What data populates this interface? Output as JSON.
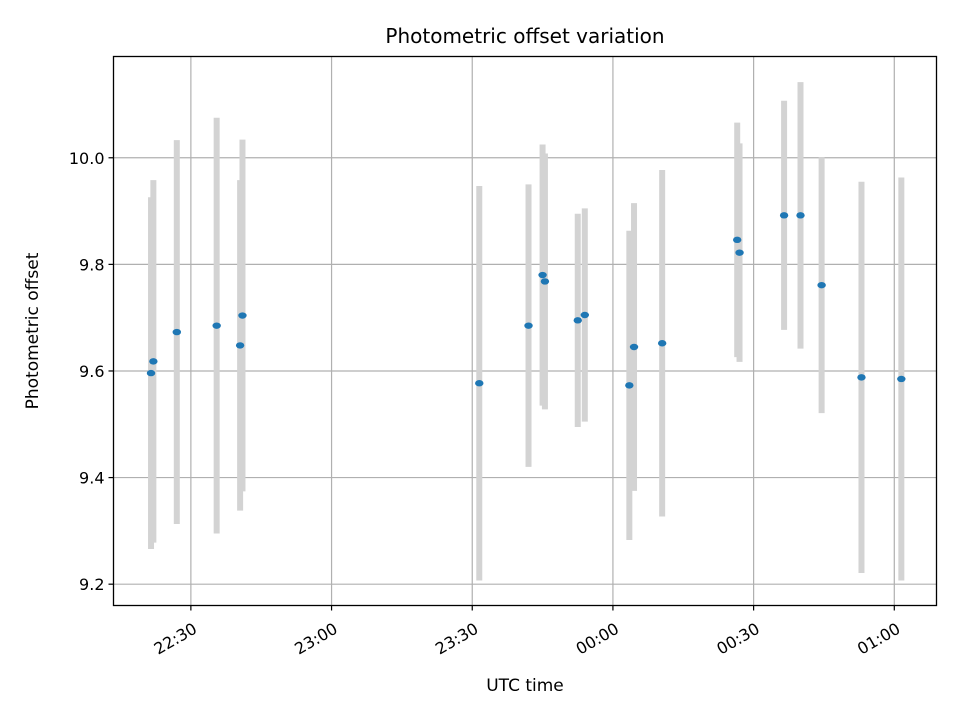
{
  "chart_data": {
    "type": "scatter",
    "title": "Photometric offset variation",
    "xlabel": "UTC time",
    "ylabel": "Photometric offset",
    "grid": true,
    "xlim": [
      "22:13:30",
      "01:09:00"
    ],
    "ylim": [
      9.16,
      10.19
    ],
    "x_ticks": [
      "22:30",
      "23:00",
      "23:30",
      "00:00",
      "00:30",
      "01:00"
    ],
    "y_ticks": [
      "9.2",
      "9.4",
      "9.6",
      "9.8",
      "10.0"
    ],
    "colors": {
      "points": "#1f77b4",
      "error_bars": "#d3d3d3",
      "grid": "#b0b0b0"
    },
    "series": [
      {
        "points": [
          {
            "x": "22:21:30",
            "y": 9.596,
            "err": 0.33
          },
          {
            "x": "22:22:00",
            "y": 9.618,
            "err": 0.34
          },
          {
            "x": "22:27:00",
            "y": 9.673,
            "err": 0.36
          },
          {
            "x": "22:35:30",
            "y": 9.685,
            "err": 0.39
          },
          {
            "x": "22:40:30",
            "y": 9.648,
            "err": 0.31
          },
          {
            "x": "22:41:00",
            "y": 9.704,
            "err": 0.33
          },
          {
            "x": "23:31:30",
            "y": 9.577,
            "err": 0.37
          },
          {
            "x": "23:42:00",
            "y": 9.685,
            "err": 0.265
          },
          {
            "x": "23:45:00",
            "y": 9.78,
            "err": 0.245
          },
          {
            "x": "23:45:30",
            "y": 9.768,
            "err": 0.24
          },
          {
            "x": "23:52:30",
            "y": 9.695,
            "err": 0.2
          },
          {
            "x": "23:54:00",
            "y": 9.705,
            "err": 0.2
          },
          {
            "x": "00:03:30",
            "y": 9.573,
            "err": 0.29
          },
          {
            "x": "00:04:30",
            "y": 9.645,
            "err": 0.27
          },
          {
            "x": "00:10:30",
            "y": 9.652,
            "err": 0.325
          },
          {
            "x": "00:26:30",
            "y": 9.846,
            "err": 0.22
          },
          {
            "x": "00:27:00",
            "y": 9.822,
            "err": 0.205
          },
          {
            "x": "00:36:30",
            "y": 9.892,
            "err": 0.215
          },
          {
            "x": "00:40:00",
            "y": 9.892,
            "err": 0.25
          },
          {
            "x": "00:44:30",
            "y": 9.761,
            "err": 0.24
          },
          {
            "x": "00:53:00",
            "y": 9.588,
            "err": 0.367
          },
          {
            "x": "01:01:30",
            "y": 9.585,
            "err": 0.378
          }
        ]
      }
    ]
  }
}
